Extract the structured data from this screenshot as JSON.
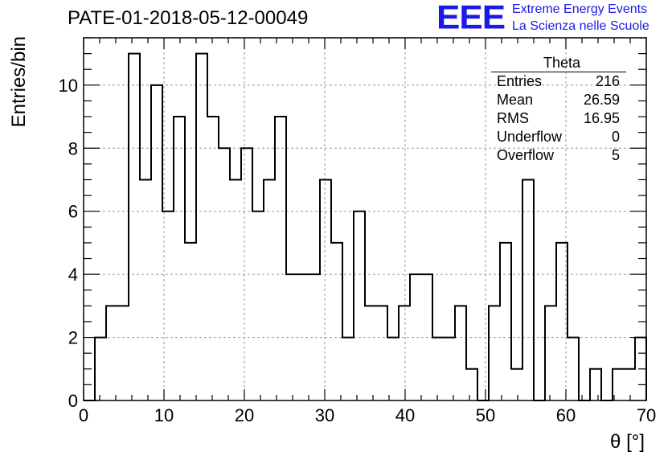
{
  "header": {
    "title": "PATE-01-2018-05-12-00049",
    "logo_text": "EEE",
    "logo_line1": "Extreme Energy Events",
    "logo_line2": "La Scienza nelle Scuole",
    "logo_color": "#1a1ae8"
  },
  "stats_box": {
    "title": "Theta",
    "rows": [
      {
        "label": "Entries",
        "value": "216"
      },
      {
        "label": "Mean",
        "value": "26.59"
      },
      {
        "label": "RMS",
        "value": "16.95"
      },
      {
        "label": "Underflow",
        "value": "0"
      },
      {
        "label": "Overflow",
        "value": "5"
      }
    ]
  },
  "chart_data": {
    "type": "histogram",
    "xlabel": "θ [°]",
    "ylabel": "Entries/bin",
    "xlim": [
      0,
      70
    ],
    "ylim": [
      0,
      11.5
    ],
    "bin_width": 1.4,
    "xticks": [
      0,
      10,
      20,
      30,
      40,
      50,
      60,
      70
    ],
    "yticks": [
      0,
      2,
      4,
      6,
      8,
      10
    ],
    "grid": true,
    "values": [
      0,
      2,
      3,
      3,
      11,
      7,
      10,
      6,
      9,
      5,
      11,
      9,
      8,
      7,
      8,
      6,
      7,
      9,
      4,
      4,
      4,
      7,
      5,
      2,
      6,
      3,
      3,
      2,
      3,
      4,
      4,
      2,
      2,
      3,
      1,
      0,
      3,
      5,
      1,
      7,
      0,
      3,
      5,
      2,
      0,
      1,
      0,
      1,
      1,
      2
    ],
    "line_color": "#000000",
    "grid_color": "#999999"
  }
}
